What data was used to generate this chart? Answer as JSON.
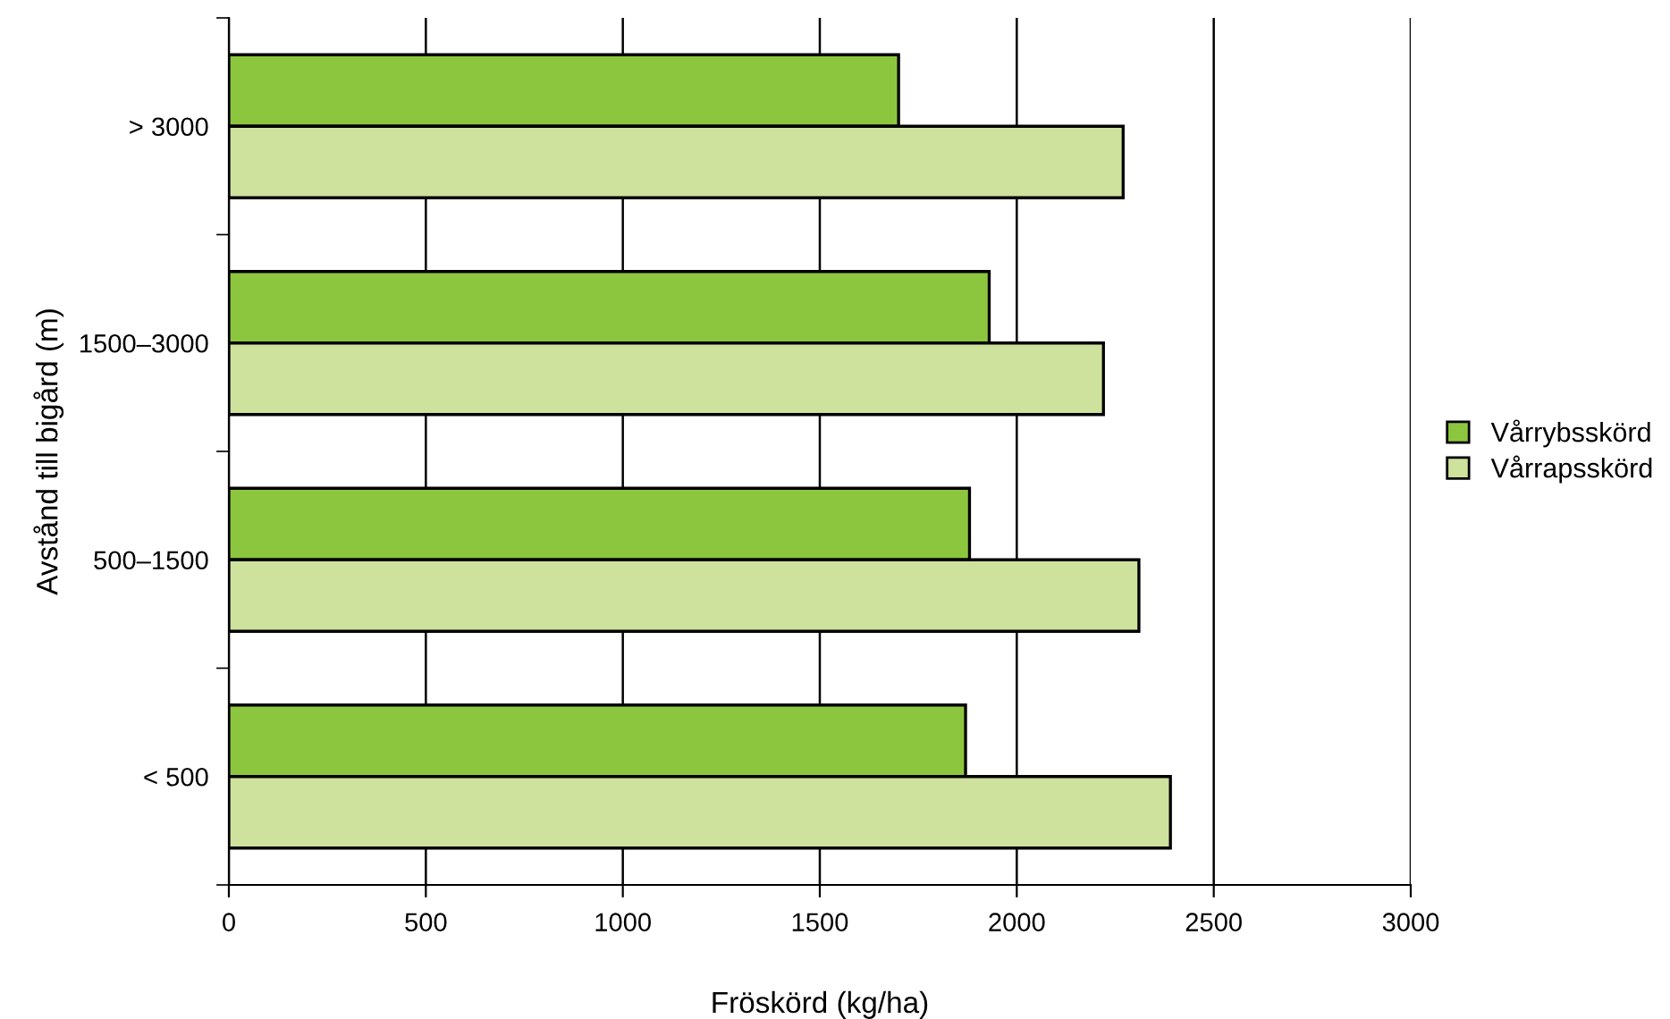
{
  "chart_data": {
    "type": "bar",
    "orientation": "horizontal",
    "xlabel": "Fröskörd (kg/ha)",
    "ylabel": "Avstånd till bigård (m)",
    "categories": [
      "> 3000",
      "1500–3000",
      "500–1500",
      "< 500"
    ],
    "series": [
      {
        "name": "Vårrybsskörd",
        "color": "#8cc63f",
        "values": [
          1700,
          1930,
          1880,
          1870
        ]
      },
      {
        "name": "Vårrapsskörd",
        "color": "#cee19d",
        "values": [
          2270,
          2220,
          2310,
          2390
        ]
      }
    ],
    "xlim": [
      0,
      3000
    ],
    "xticks": [
      0,
      500,
      1000,
      1500,
      2000,
      2500,
      3000
    ],
    "grid": "x",
    "legend": "right"
  }
}
